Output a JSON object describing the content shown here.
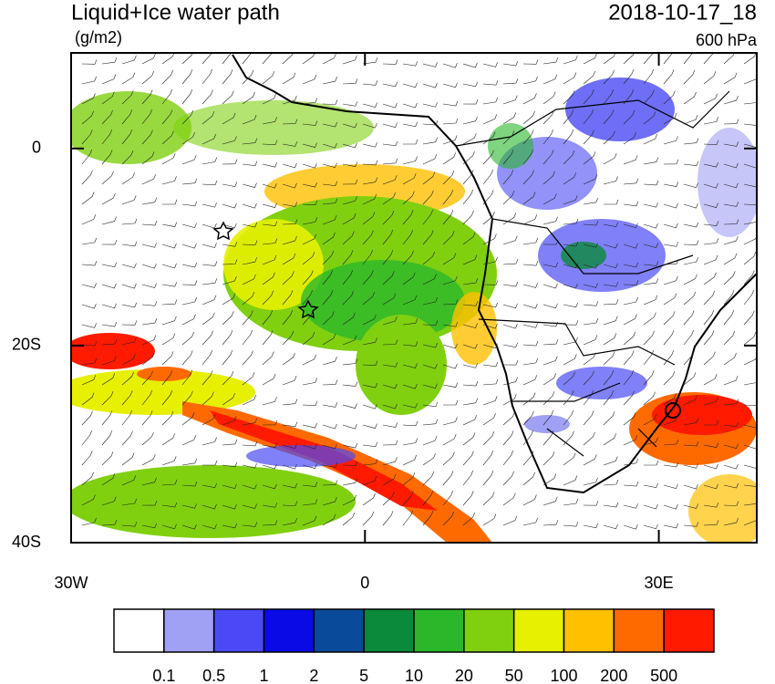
{
  "title": "Liquid+Ice water path",
  "units": "(g/m2)",
  "valid_time": "2018-10-17_18",
  "level": "600 hPa",
  "map": {
    "lon_range": [
      -30,
      40
    ],
    "lat_range": [
      -40,
      9.7
    ],
    "lon_ticks": [
      {
        "value": -30,
        "label": "30W"
      },
      {
        "value": 0,
        "label": "0"
      },
      {
        "value": 30,
        "label": "30E"
      }
    ],
    "lat_ticks": [
      {
        "value": 0,
        "label": "0"
      },
      {
        "value": -20,
        "label": "20S"
      },
      {
        "value": -40,
        "label": "40S"
      }
    ]
  },
  "colorbar": {
    "colors": [
      "#ffffff",
      "#a0a0f5",
      "#4a4af5",
      "#0a0ae6",
      "#0a4a9a",
      "#0a8a3a",
      "#2ab82a",
      "#80d010",
      "#e6f000",
      "#ffc000",
      "#ff6a00",
      "#ff1a00"
    ],
    "labels": [
      0.1,
      0.5,
      1,
      2,
      5,
      10,
      20,
      50,
      100,
      200,
      500
    ]
  }
}
